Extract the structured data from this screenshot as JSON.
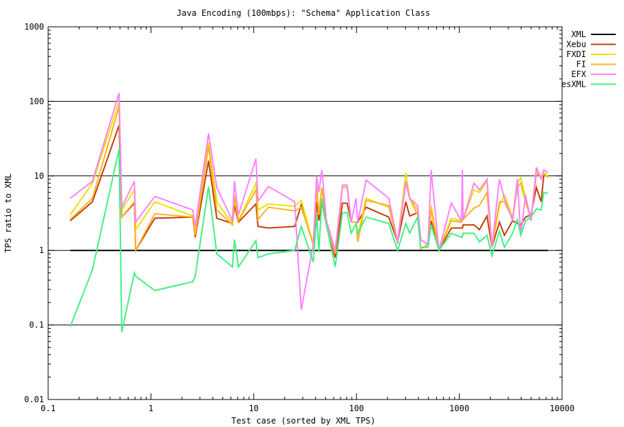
{
  "chart_data": {
    "type": "line",
    "title": "Java Encoding (100mbps): \"Schema\" Application Class",
    "xlabel": "Test case (sorted by XML TPS)",
    "ylabel": "TPS ratio to XML",
    "xscale": "log",
    "yscale": "log",
    "xlim": [
      0.1,
      10000
    ],
    "ylim": [
      0.01,
      1000
    ],
    "x_ticks": [
      "0.1",
      "1",
      "10",
      "100",
      "1000",
      "10000"
    ],
    "y_ticks": [
      "0.01",
      "0.1",
      "1",
      "10",
      "100",
      "1000"
    ],
    "grid": "horizontal at major y ticks",
    "legend_position": "top-right",
    "x": [
      0.164,
      0.27,
      0.49,
      0.52,
      0.69,
      0.71,
      1.09,
      2.55,
      2.7,
      3.63,
      4.37,
      6.2,
      6.5,
      7.1,
      10.5,
      11.0,
      13.9,
      25,
      29,
      38,
      41,
      43,
      46,
      51,
      62,
      73,
      81,
      89,
      99,
      103,
      124,
      206,
      251,
      302,
      329,
      393,
      421,
      495,
      533,
      634,
      836,
      1050,
      1070,
      1090,
      1390,
      1570,
      1860,
      2075,
      2456,
      2750,
      3300,
      3670,
      3960,
      4410,
      4980,
      5620,
      6260,
      6650,
      7300
    ],
    "series": [
      {
        "name": "XML",
        "color": "#000000",
        "values": [
          1,
          1,
          1,
          1,
          1,
          1,
          1,
          1,
          1,
          1,
          1,
          1,
          1,
          1,
          1,
          1,
          1,
          1,
          1,
          1,
          1,
          1,
          1,
          1,
          1,
          1,
          1,
          1,
          1,
          1,
          1,
          1,
          1,
          1,
          1,
          1,
          1,
          1,
          1,
          1,
          1,
          1,
          1,
          1,
          1,
          1,
          1,
          1,
          1,
          1,
          1,
          1,
          1,
          1,
          1,
          1,
          1,
          1,
          1
        ]
      },
      {
        "name": "Xebu",
        "color": "#c04000",
        "values": [
          2.5,
          4.5,
          48,
          2.8,
          4.3,
          1.0,
          2.7,
          2.8,
          1.5,
          16,
          2.7,
          2.3,
          4,
          2.4,
          4.2,
          2.1,
          2.0,
          2.1,
          4.1,
          1.2,
          4.5,
          2.5,
          4.5,
          2.2,
          0.8,
          4.3,
          4.3,
          2.4,
          2.4,
          2.4,
          3.8,
          2.8,
          1.3,
          4.5,
          2.9,
          3.2,
          1.4,
          1.2,
          2.5,
          1.0,
          2.0,
          2.0,
          2.0,
          2.2,
          2.2,
          1.9,
          2.9,
          1.1,
          2.4,
          1.6,
          2.5,
          2.3,
          2.2,
          2.8,
          3.0,
          7,
          4.5,
          10.5,
          10
        ]
      },
      {
        "name": "FXDI",
        "color": "#eee000",
        "values": [
          3.0,
          8,
          100,
          3.5,
          6.5,
          1.9,
          4.5,
          2.9,
          1.7,
          28,
          4.5,
          2.3,
          5,
          2.5,
          8,
          3.5,
          4.2,
          3.9,
          4.7,
          1.2,
          8,
          3,
          7,
          2.2,
          1.0,
          7.5,
          7.5,
          2.4,
          2.4,
          1.6,
          5,
          3.8,
          1.3,
          11,
          5,
          3.5,
          1.4,
          1.2,
          4,
          1.0,
          2.7,
          2.5,
          3,
          2.6,
          6.5,
          6,
          8.5,
          1.1,
          4,
          5.5,
          2.8,
          8,
          9.5,
          5,
          2.6,
          12,
          10,
          11,
          10
        ]
      },
      {
        "name": "FI",
        "color": "#ffb020",
        "values": [
          2.6,
          5,
          85,
          2.8,
          4.5,
          1.0,
          3.1,
          2.8,
          1.6,
          25,
          3.5,
          2.2,
          5.5,
          2.5,
          6.5,
          2.6,
          3.8,
          3.4,
          3.8,
          1.2,
          7,
          3,
          7,
          2.2,
          0.9,
          7,
          7,
          2.4,
          2.4,
          1.3,
          4.7,
          4.0,
          1.3,
          8,
          5,
          3,
          1.05,
          1.2,
          3.5,
          1.0,
          2.5,
          2.4,
          2.6,
          2.6,
          3.7,
          4,
          6,
          1.1,
          4.5,
          4.5,
          2.6,
          7,
          8,
          4.5,
          2.6,
          11,
          9.5,
          10.5,
          9.5
        ]
      },
      {
        "name": "EFX",
        "color": "#ff80ff",
        "values": [
          5.0,
          8.5,
          130,
          3.8,
          8.5,
          2.4,
          5.3,
          3.5,
          2.1,
          37,
          7,
          2.5,
          8.5,
          3,
          17,
          4.6,
          7.2,
          4.5,
          0.16,
          1.2,
          10,
          6,
          12,
          2.5,
          1.0,
          7.5,
          7.5,
          2.4,
          5,
          2.4,
          8.8,
          5,
          1.3,
          8.5,
          5,
          4,
          1.4,
          1.2,
          12,
          1.0,
          4.3,
          2.5,
          12,
          2.6,
          8,
          6.5,
          9,
          1.1,
          9,
          5,
          2.5,
          9,
          1.6,
          5.5,
          2.5,
          13,
          9,
          12,
          11
        ]
      },
      {
        "name": "esXML",
        "color": "#40f080",
        "values": [
          0.095,
          0.55,
          23,
          0.08,
          0.5,
          0.45,
          0.29,
          0.38,
          0.45,
          7.2,
          0.9,
          0.6,
          1.4,
          0.6,
          1.35,
          0.8,
          0.9,
          1.0,
          2.1,
          0.7,
          3,
          0.95,
          5,
          2.2,
          0.6,
          3.2,
          3.2,
          1.7,
          2.3,
          1.7,
          2.8,
          2.3,
          1.0,
          2.3,
          1.7,
          2.8,
          1.1,
          1.1,
          2.2,
          1.0,
          1.7,
          1.5,
          1.5,
          1.7,
          1.7,
          1.3,
          1.6,
          0.85,
          1.8,
          1.1,
          1.7,
          2.6,
          1.6,
          2.5,
          2.8,
          3.6,
          3.5,
          6,
          5.8
        ]
      }
    ]
  }
}
